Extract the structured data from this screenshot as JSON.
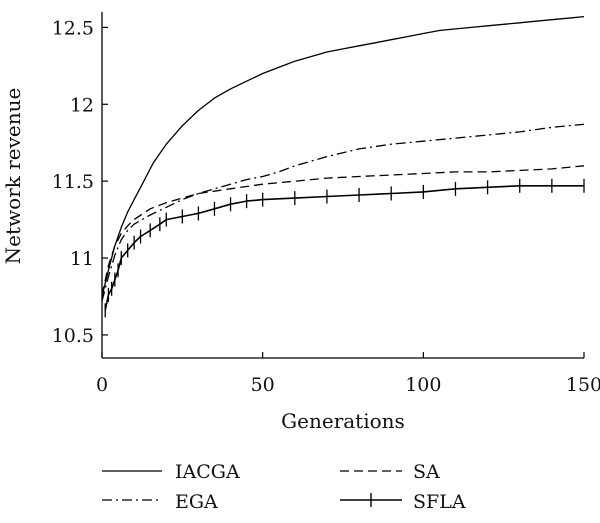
{
  "chart_data": {
    "type": "line",
    "title": "",
    "xlabel": "Generations",
    "ylabel": "Network revenue",
    "xlim": [
      0,
      150
    ],
    "ylim": [
      10.35,
      12.6
    ],
    "x_ticks": [
      0,
      50,
      100,
      150
    ],
    "y_ticks": [
      10.5,
      11,
      11.5,
      12,
      12.5
    ],
    "grid": false,
    "legend_position": "bottom",
    "series": [
      {
        "name": "IACGA",
        "style": "solid",
        "color": "#000000",
        "x": [
          0,
          2,
          4,
          6,
          8,
          10,
          12,
          14,
          16,
          18,
          20,
          25,
          30,
          35,
          40,
          45,
          50,
          55,
          60,
          65,
          70,
          75,
          80,
          85,
          90,
          95,
          100,
          105,
          110,
          115,
          120,
          125,
          130,
          135,
          140,
          145,
          150
        ],
        "y": [
          10.75,
          10.92,
          11.08,
          11.2,
          11.3,
          11.38,
          11.46,
          11.54,
          11.62,
          11.68,
          11.74,
          11.86,
          11.96,
          12.04,
          12.1,
          12.15,
          12.2,
          12.24,
          12.28,
          12.31,
          12.34,
          12.36,
          12.38,
          12.4,
          12.42,
          12.44,
          12.46,
          12.48,
          12.49,
          12.5,
          12.51,
          12.52,
          12.53,
          12.54,
          12.55,
          12.56,
          12.57
        ]
      },
      {
        "name": "EGA",
        "style": "dashdot",
        "color": "#000000",
        "x": [
          0,
          2,
          4,
          6,
          8,
          10,
          15,
          20,
          25,
          30,
          35,
          40,
          45,
          50,
          55,
          60,
          70,
          80,
          90,
          100,
          110,
          120,
          130,
          140,
          150
        ],
        "y": [
          10.72,
          10.88,
          11.02,
          11.12,
          11.18,
          11.22,
          11.28,
          11.33,
          11.38,
          11.42,
          11.45,
          11.48,
          11.51,
          11.53,
          11.56,
          11.6,
          11.66,
          11.71,
          11.74,
          11.76,
          11.78,
          11.8,
          11.82,
          11.85,
          11.87
        ]
      },
      {
        "name": "SA",
        "style": "dashed",
        "color": "#000000",
        "x": [
          0,
          2,
          4,
          6,
          8,
          10,
          15,
          20,
          25,
          30,
          40,
          50,
          60,
          70,
          80,
          90,
          100,
          110,
          120,
          130,
          140,
          150
        ],
        "y": [
          10.76,
          10.95,
          11.08,
          11.16,
          11.21,
          11.25,
          11.32,
          11.36,
          11.39,
          11.42,
          11.45,
          11.48,
          11.5,
          11.52,
          11.53,
          11.54,
          11.55,
          11.56,
          11.56,
          11.57,
          11.58,
          11.6
        ]
      },
      {
        "name": "SFLA",
        "style": "solid-plus",
        "color": "#000000",
        "x": [
          1,
          2,
          3,
          4,
          5,
          6,
          8,
          10,
          12,
          15,
          18,
          20,
          25,
          30,
          35,
          40,
          45,
          50,
          60,
          70,
          80,
          90,
          100,
          110,
          120,
          130,
          140,
          150
        ],
        "y": [
          10.66,
          10.76,
          10.8,
          10.86,
          10.92,
          11.0,
          11.05,
          11.1,
          11.14,
          11.18,
          11.22,
          11.25,
          11.27,
          11.29,
          11.32,
          11.35,
          11.37,
          11.38,
          11.39,
          11.4,
          11.41,
          11.42,
          11.43,
          11.45,
          11.46,
          11.47,
          11.47,
          11.47
        ]
      }
    ]
  }
}
